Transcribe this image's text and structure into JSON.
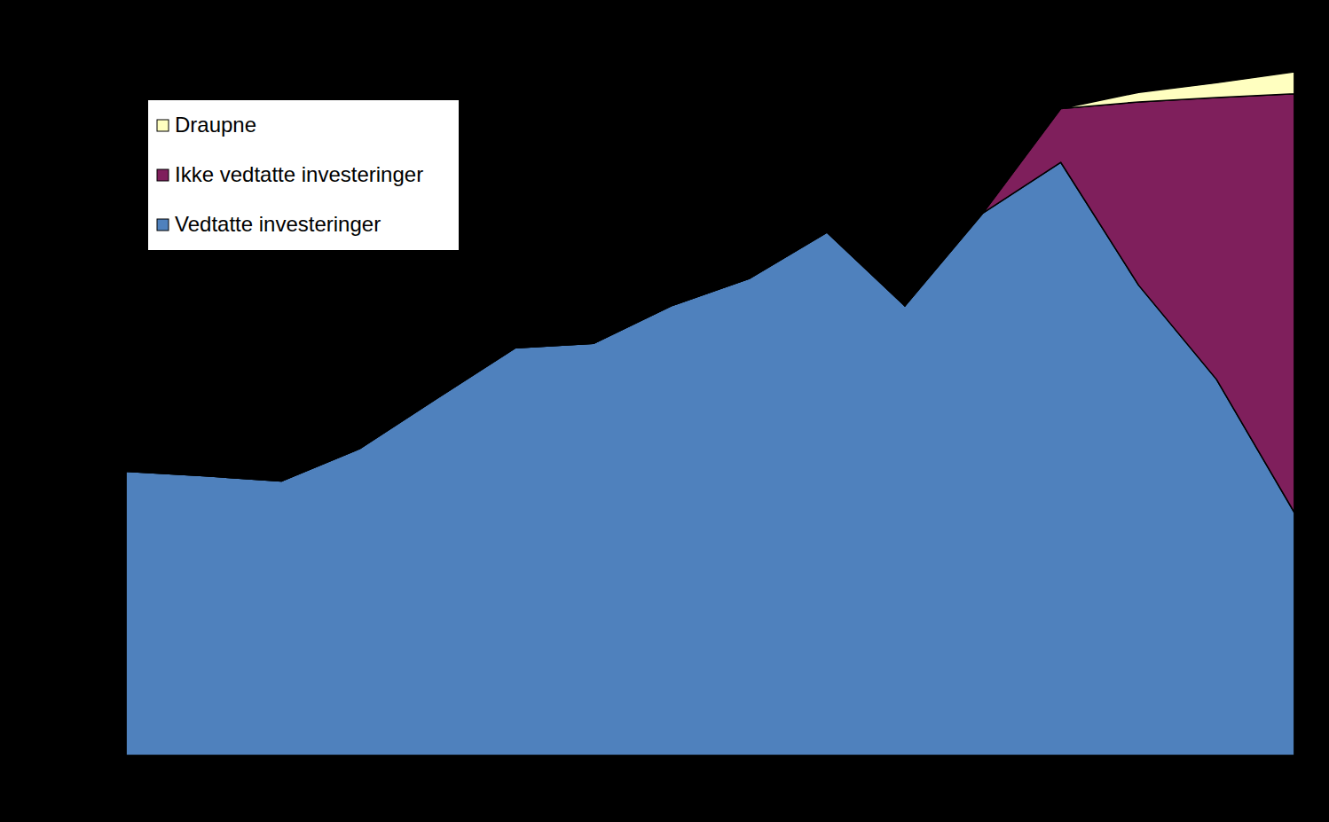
{
  "chart_data": {
    "type": "area",
    "stacked": true,
    "tick_labels": false,
    "grid": false,
    "legend": "upper left",
    "categories": [
      null,
      null,
      null,
      null,
      null,
      null,
      null,
      null,
      null,
      null,
      null,
      null,
      null,
      null,
      null,
      null
    ],
    "ylim": [
      0,
      100
    ],
    "yticks": [
      0,
      20,
      40,
      60,
      80,
      100
    ],
    "series": [
      {
        "name": "Vedtatte investeringer",
        "color": "#4f81bd",
        "values": [
          38.6,
          38.0,
          37.3,
          41.7,
          48.6,
          55.4,
          56.0,
          61.1,
          64.8,
          71.1,
          61.1,
          73.7,
          80.6,
          63.9,
          51.1,
          33.0
        ]
      },
      {
        "name": "Ikke vedtatte investeringer",
        "color": "#7f1f5c",
        "values": [
          0,
          0,
          0,
          0,
          0,
          0,
          0,
          0,
          0,
          0,
          0,
          0,
          7.3,
          24.9,
          38.3,
          56.9
        ]
      },
      {
        "name": "Draupne",
        "color": "#ffffc0",
        "values": [
          0,
          0,
          0,
          0,
          0,
          0,
          0,
          0,
          0,
          0,
          0,
          0,
          0,
          1.3,
          2.0,
          3.0
        ]
      }
    ]
  }
}
